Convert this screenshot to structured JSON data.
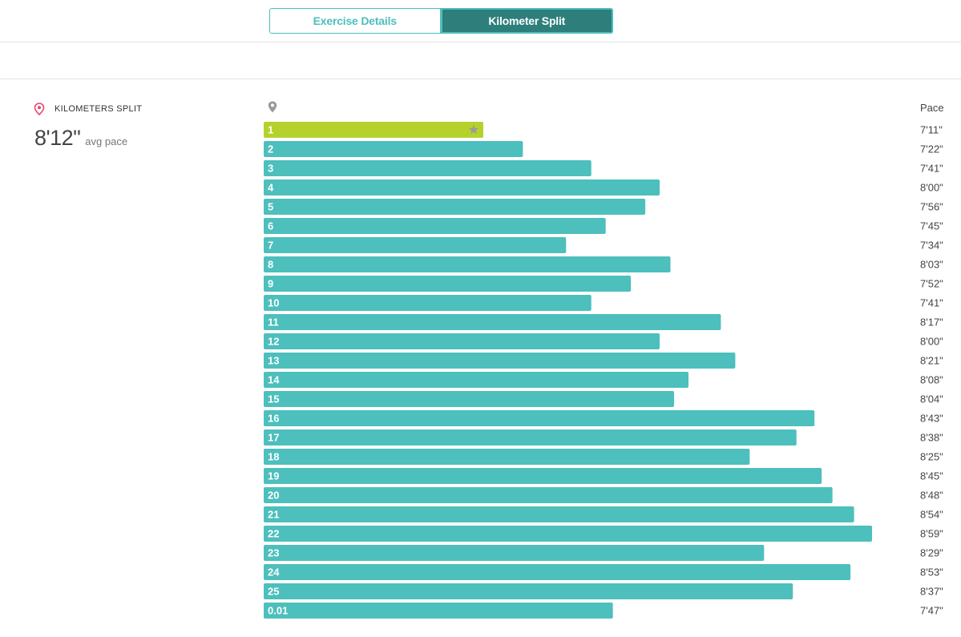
{
  "tabs": {
    "exercise_details": "Exercise Details",
    "kilometer_split": "Kilometer Split"
  },
  "split_panel": {
    "title": "KILOMETERS SPLIT",
    "avg_pace_value": "8'12\"",
    "avg_pace_label": "avg pace",
    "pace_header": "Pace"
  },
  "colors": {
    "bar": "#4dbfbc",
    "fastest_bar": "#b5d22c",
    "tab_active": "#2e7f7c",
    "location_pin": "#e5476b"
  },
  "icons": {
    "location": "location-pin-icon",
    "star": "star-icon"
  },
  "chart_data": {
    "type": "bar",
    "orientation": "horizontal",
    "categories": [
      "1",
      "2",
      "3",
      "4",
      "5",
      "6",
      "7",
      "8",
      "9",
      "10",
      "11",
      "12",
      "13",
      "14",
      "15",
      "16",
      "17",
      "18",
      "19",
      "20",
      "21",
      "22",
      "23",
      "24",
      "25",
      "0.01"
    ],
    "pace_labels": [
      "7'11\"",
      "7'22\"",
      "7'41\"",
      "8'00\"",
      "7'56\"",
      "7'45\"",
      "7'34\"",
      "8'03\"",
      "7'52\"",
      "7'41\"",
      "8'17\"",
      "8'00\"",
      "8'21\"",
      "8'08\"",
      "8'04\"",
      "8'43\"",
      "8'38\"",
      "8'25\"",
      "8'45\"",
      "8'48\"",
      "8'54\"",
      "8'59\"",
      "8'29\"",
      "8'53\"",
      "8'37\"",
      "7'47\""
    ],
    "values_seconds": [
      431,
      442,
      461,
      480,
      476,
      465,
      454,
      483,
      472,
      461,
      497,
      480,
      501,
      488,
      484,
      523,
      518,
      505,
      525,
      528,
      534,
      539,
      509,
      533,
      517,
      467
    ],
    "fastest_index": 0,
    "xlim": [
      370,
      545
    ]
  }
}
